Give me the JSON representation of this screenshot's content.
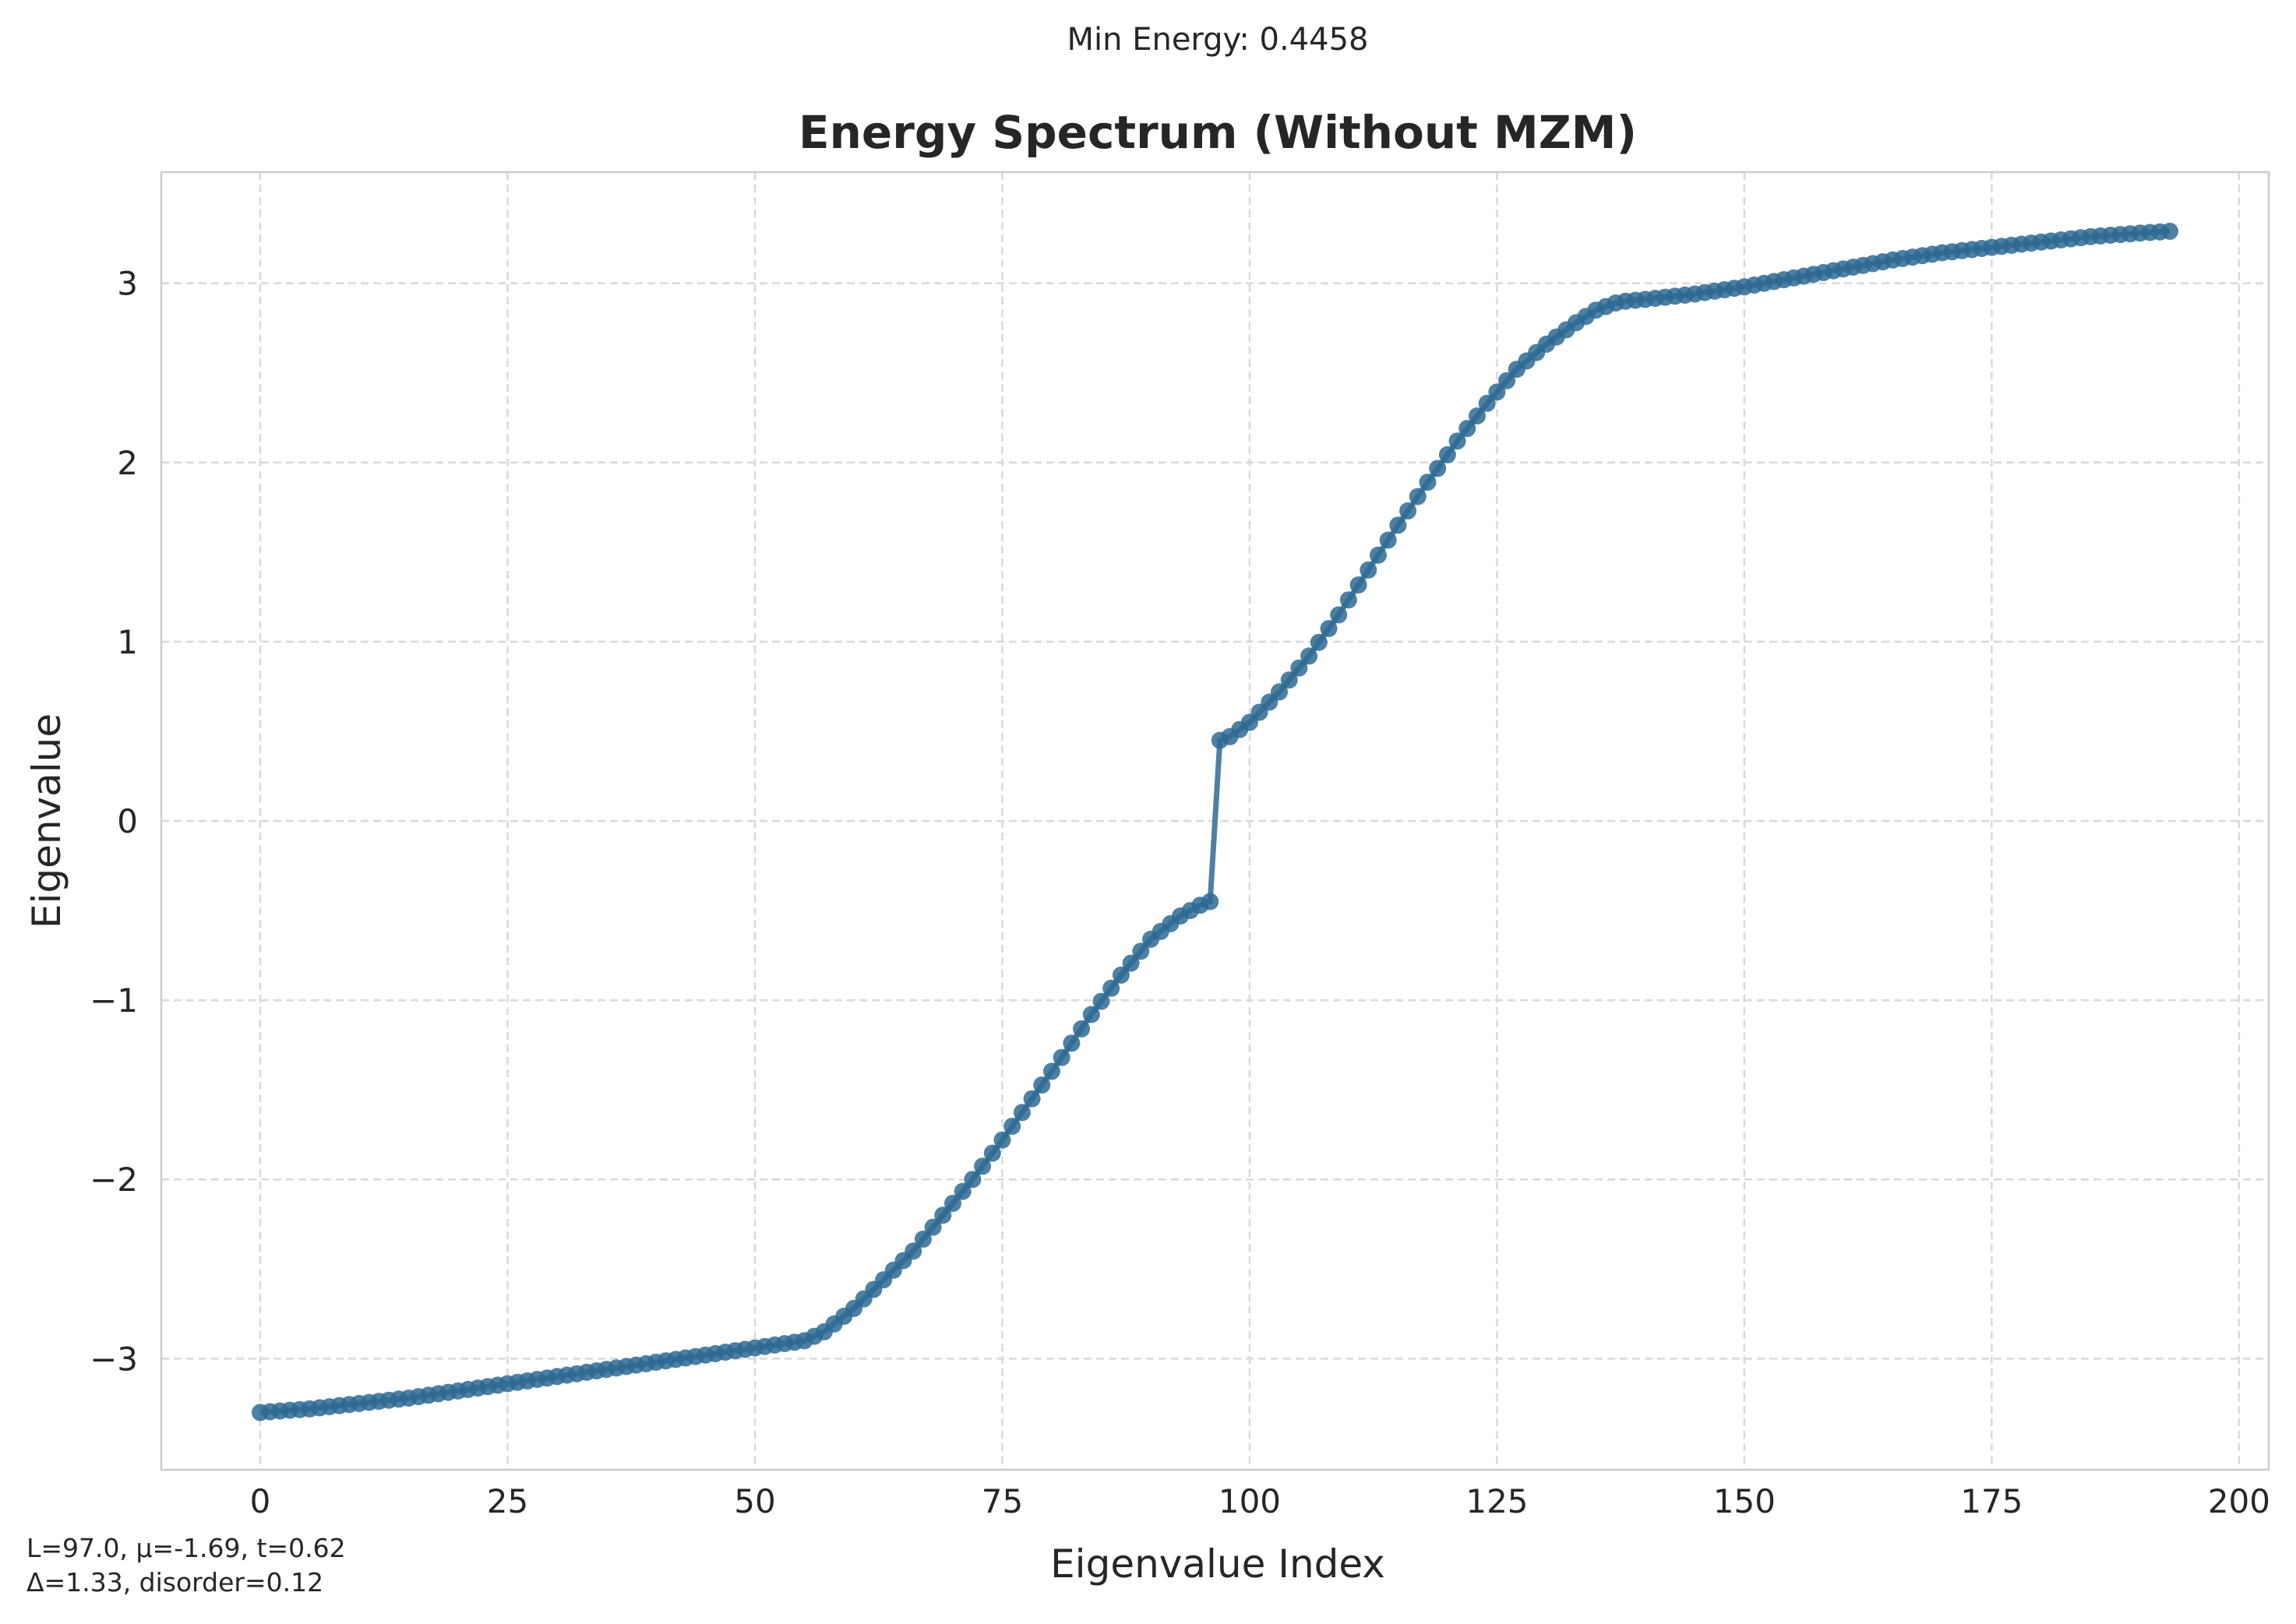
{
  "figure": {
    "suptitle": "Min Energy: 0.4458",
    "footnote_line1": "L=97.0, μ=-1.69, t=0.62",
    "footnote_line2": "Δ=1.33, disorder=0.12"
  },
  "colors": {
    "series": "#2e6a93",
    "grid": "#d9d9d9",
    "spine": "#cccccc",
    "text": "#262626"
  },
  "chart_data": {
    "type": "line",
    "title": "Energy Spectrum (Without MZM)",
    "xlabel": "Eigenvalue Index",
    "ylabel": "Eigenvalue",
    "xlim": [
      -10,
      203
    ],
    "ylim": [
      -3.62,
      3.62
    ],
    "xticks": [
      0,
      25,
      50,
      75,
      100,
      125,
      150,
      175,
      200
    ],
    "xtick_labels": [
      "0",
      "25",
      "50",
      "75",
      "100",
      "125",
      "150",
      "175",
      "200"
    ],
    "yticks": [
      -3,
      -2,
      -1,
      0,
      1,
      2,
      3
    ],
    "ytick_labels": [
      "−3",
      "−2",
      "−1",
      "0",
      "1",
      "2",
      "3"
    ],
    "grid": true,
    "markers": true,
    "series": [
      {
        "x": [
          0,
          5,
          10,
          15,
          20,
          25,
          30,
          35,
          40,
          45,
          50,
          55,
          57,
          60,
          63,
          66,
          69,
          72,
          75,
          78,
          81,
          84,
          87,
          90,
          93,
          95,
          96,
          97,
          98,
          100,
          103,
          106,
          109,
          112,
          115,
          118,
          121,
          124,
          127,
          130,
          133,
          135,
          137,
          138,
          140,
          145,
          150,
          155,
          160,
          165,
          170,
          175,
          180,
          185,
          190,
          193
        ],
        "y": [
          -3.3,
          -3.28,
          -3.25,
          -3.22,
          -3.18,
          -3.14,
          -3.1,
          -3.06,
          -3.02,
          -2.98,
          -2.94,
          -2.9,
          -2.85,
          -2.72,
          -2.56,
          -2.4,
          -2.2,
          -2.0,
          -1.78,
          -1.55,
          -1.32,
          -1.08,
          -0.86,
          -0.66,
          -0.53,
          -0.47,
          -0.45,
          0.45,
          0.47,
          0.55,
          0.72,
          0.92,
          1.15,
          1.4,
          1.65,
          1.89,
          2.12,
          2.33,
          2.52,
          2.66,
          2.78,
          2.85,
          2.89,
          2.9,
          2.91,
          2.94,
          2.98,
          3.03,
          3.08,
          3.13,
          3.17,
          3.2,
          3.23,
          3.26,
          3.28,
          3.29
        ]
      }
    ]
  }
}
